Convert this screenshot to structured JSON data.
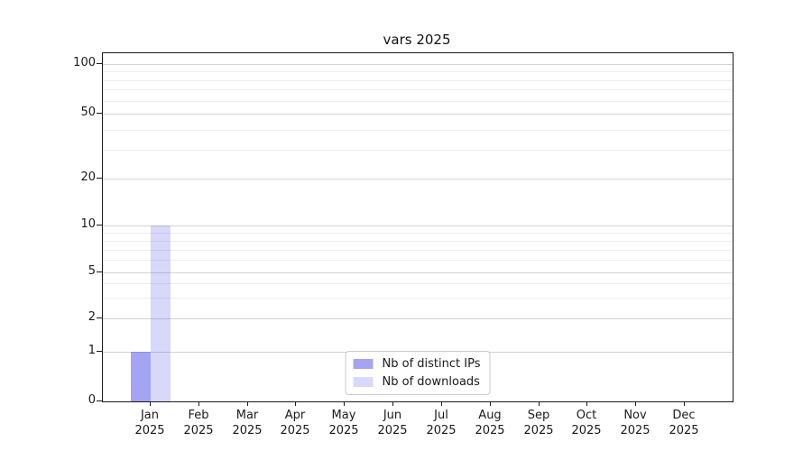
{
  "chart_data": {
    "type": "bar",
    "title": "vars 2025",
    "categories": [
      "Jan 2025",
      "Feb 2025",
      "Mar 2025",
      "Apr 2025",
      "May 2025",
      "Jun 2025",
      "Jul 2025",
      "Aug 2025",
      "Sep 2025",
      "Oct 2025",
      "Nov 2025",
      "Dec 2025"
    ],
    "x_tick_line1": [
      "Jan",
      "Feb",
      "Mar",
      "Apr",
      "May",
      "Jun",
      "Jul",
      "Aug",
      "Sep",
      "Oct",
      "Nov",
      "Dec"
    ],
    "x_tick_line2": "2025",
    "series": [
      {
        "name": "Nb of distinct IPs",
        "color": "rgba(73,73,233,0.5)",
        "values": [
          1,
          0,
          0,
          0,
          0,
          0,
          0,
          0,
          0,
          0,
          0,
          0
        ]
      },
      {
        "name": "Nb of downloads",
        "color": "rgba(73,73,233,0.21)",
        "values": [
          10,
          0,
          0,
          0,
          0,
          0,
          0,
          0,
          0,
          0,
          0,
          0
        ]
      }
    ],
    "yscale": "symlog",
    "ylim": [
      0,
      117
    ],
    "y_major_ticks": [
      0,
      1,
      2,
      5,
      10,
      20,
      50,
      100
    ],
    "y_minor_ticks": [
      3,
      4,
      6,
      7,
      8,
      9,
      30,
      40,
      60,
      70,
      80,
      90
    ],
    "grid": {
      "major_color": "#d3d3d3",
      "minor_color": "#eeeeee"
    },
    "legend_position": "lower center"
  }
}
